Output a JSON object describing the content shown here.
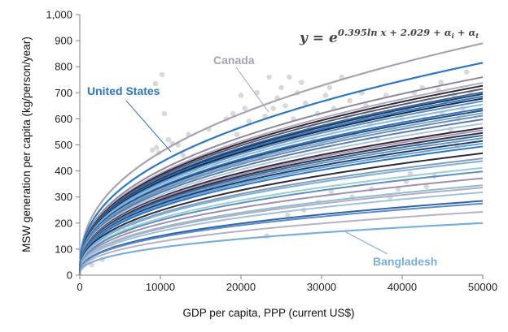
{
  "chart_data": {
    "type": "line",
    "xlabel": "GDP per capita, PPP (current US$)",
    "ylabel": "MSW generation per capita (kg/person/year)",
    "xlim": [
      0,
      50000
    ],
    "ylim": [
      0,
      1000
    ],
    "x_ticks": [
      "0",
      "10000",
      "20000",
      "30000",
      "40000",
      "50000"
    ],
    "y_ticks": [
      "0",
      "100",
      "200",
      "300",
      "400",
      "500",
      "600",
      "700",
      "800",
      "900",
      "1,000"
    ],
    "grid": false,
    "equation": {
      "lhs": "y",
      "eq": " = ",
      "base": "e",
      "exponent": "0.395ln x + 2.029 + α",
      "sub_i": "i",
      "plus": " + α",
      "sub_t": "t"
    },
    "model": {
      "exponent": 0.395
    },
    "highlighted_series": [
      {
        "name": "Canada",
        "color": "#a9a2b7",
        "value_at_50000": 890
      },
      {
        "name": "United States",
        "color": "#2a77c6",
        "value_at_50000": 815
      },
      {
        "name": "Bangladesh",
        "color": "#7aaedc",
        "value_at_50000": 200
      }
    ],
    "background_curves": [
      {
        "value_at_50000": 760,
        "color": "#8c88a2"
      },
      {
        "value_at_50000": 738,
        "color": "#b7a9bd"
      },
      {
        "value_at_50000": 727,
        "color": "#2c2c3c"
      },
      {
        "value_at_50000": 715,
        "color": "#5a5a74"
      },
      {
        "value_at_50000": 702,
        "color": "#3e6a98"
      },
      {
        "value_at_50000": 695,
        "color": "#1f3d6a"
      },
      {
        "value_at_50000": 686,
        "color": "#2a77c6"
      },
      {
        "value_at_50000": 678,
        "color": "#1b2a3e"
      },
      {
        "value_at_50000": 668,
        "color": "#5a8fc7"
      },
      {
        "value_at_50000": 655,
        "color": "#8cbadc"
      },
      {
        "value_at_50000": 640,
        "color": "#2a77c6"
      },
      {
        "value_at_50000": 632,
        "color": "#33486a"
      },
      {
        "value_at_50000": 622,
        "color": "#74aad6"
      },
      {
        "value_at_50000": 612,
        "color": "#6f8fb8"
      },
      {
        "value_at_50000": 598,
        "color": "#5b7ea6"
      },
      {
        "value_at_50000": 582,
        "color": "#a9c7e0"
      },
      {
        "value_at_50000": 565,
        "color": "#2b2b3b"
      },
      {
        "value_at_50000": 556,
        "color": "#b88fa8"
      },
      {
        "value_at_50000": 546,
        "color": "#1f3550"
      },
      {
        "value_at_50000": 536,
        "color": "#3e6a98"
      },
      {
        "value_at_50000": 526,
        "color": "#6b95bf"
      },
      {
        "value_at_50000": 515,
        "color": "#1a3c6a"
      },
      {
        "value_at_50000": 505,
        "color": "#6aa0d2"
      },
      {
        "value_at_50000": 494,
        "color": "#2a77c6"
      },
      {
        "value_at_50000": 468,
        "color": "#2b2b3b"
      },
      {
        "value_at_50000": 448,
        "color": "#8a9bb4"
      },
      {
        "value_at_50000": 438,
        "color": "#7ab2de"
      },
      {
        "value_at_50000": 412,
        "color": "#9ccfd0"
      },
      {
        "value_at_50000": 398,
        "color": "#5f8ec2"
      },
      {
        "value_at_50000": 372,
        "color": "#9d8fb3"
      },
      {
        "value_at_50000": 345,
        "color": "#8fbcd0"
      },
      {
        "value_at_50000": 336,
        "color": "#b4aec0"
      },
      {
        "value_at_50000": 318,
        "color": "#9ec1de"
      },
      {
        "value_at_50000": 285,
        "color": "#2f63a8"
      },
      {
        "value_at_50000": 275,
        "color": "#5c8cc6"
      },
      {
        "value_at_50000": 243,
        "color": "#b8b0c4"
      }
    ],
    "scatter_points": [
      [
        1500,
        40
      ],
      [
        2800,
        60
      ],
      [
        4200,
        110
      ],
      [
        5600,
        170
      ],
      [
        6800,
        200
      ],
      [
        8200,
        260
      ],
      [
        9000,
        480
      ],
      [
        9500,
        490
      ],
      [
        9800,
        470
      ],
      [
        10200,
        770
      ],
      [
        10500,
        620
      ],
      [
        9400,
        735
      ],
      [
        11000,
        520
      ],
      [
        11500,
        505
      ],
      [
        12200,
        500
      ],
      [
        12800,
        460
      ],
      [
        13500,
        540
      ],
      [
        14200,
        410
      ],
      [
        15000,
        390
      ],
      [
        15500,
        345
      ],
      [
        16000,
        560
      ],
      [
        16800,
        430
      ],
      [
        17500,
        470
      ],
      [
        18200,
        600
      ],
      [
        19000,
        620
      ],
      [
        19500,
        540
      ],
      [
        20000,
        690
      ],
      [
        20500,
        640
      ],
      [
        21000,
        590
      ],
      [
        21500,
        500
      ],
      [
        22000,
        700
      ],
      [
        22500,
        450
      ],
      [
        23000,
        610
      ],
      [
        23500,
        760
      ],
      [
        24000,
        640
      ],
      [
        24500,
        680
      ],
      [
        25000,
        720
      ],
      [
        25500,
        650
      ],
      [
        26000,
        760
      ],
      [
        26500,
        600
      ],
      [
        27000,
        700
      ],
      [
        27500,
        740
      ],
      [
        28000,
        660
      ],
      [
        28500,
        560
      ],
      [
        29000,
        520
      ],
      [
        29500,
        620
      ],
      [
        30000,
        500
      ],
      [
        30500,
        690
      ],
      [
        31000,
        720
      ],
      [
        31500,
        640
      ],
      [
        32000,
        580
      ],
      [
        32500,
        760
      ],
      [
        33000,
        610
      ],
      [
        33500,
        670
      ],
      [
        34000,
        540
      ],
      [
        34500,
        600
      ],
      [
        35000,
        700
      ],
      [
        35500,
        650
      ],
      [
        36000,
        580
      ],
      [
        36500,
        620
      ],
      [
        37000,
        520
      ],
      [
        37500,
        460
      ],
      [
        38000,
        690
      ],
      [
        38500,
        300
      ],
      [
        39000,
        560
      ],
      [
        39500,
        330
      ],
      [
        40000,
        600
      ],
      [
        40500,
        360
      ],
      [
        41000,
        390
      ],
      [
        41500,
        700
      ],
      [
        42000,
        500
      ],
      [
        42500,
        720
      ],
      [
        43000,
        340
      ],
      [
        43500,
        660
      ],
      [
        44000,
        380
      ],
      [
        44500,
        710
      ],
      [
        45000,
        620
      ],
      [
        45500,
        670
      ],
      [
        46000,
        560
      ],
      [
        46500,
        690
      ],
      [
        47000,
        600
      ],
      [
        47500,
        640
      ],
      [
        48000,
        780
      ],
      [
        48500,
        700
      ],
      [
        23200,
        150
      ],
      [
        25800,
        230
      ],
      [
        27800,
        250
      ],
      [
        29600,
        280
      ],
      [
        31200,
        320
      ],
      [
        33800,
        300
      ],
      [
        36200,
        330
      ],
      [
        38800,
        620
      ],
      [
        40800,
        640
      ],
      [
        42800,
        600
      ],
      [
        44800,
        740
      ],
      [
        46800,
        500
      ]
    ]
  }
}
